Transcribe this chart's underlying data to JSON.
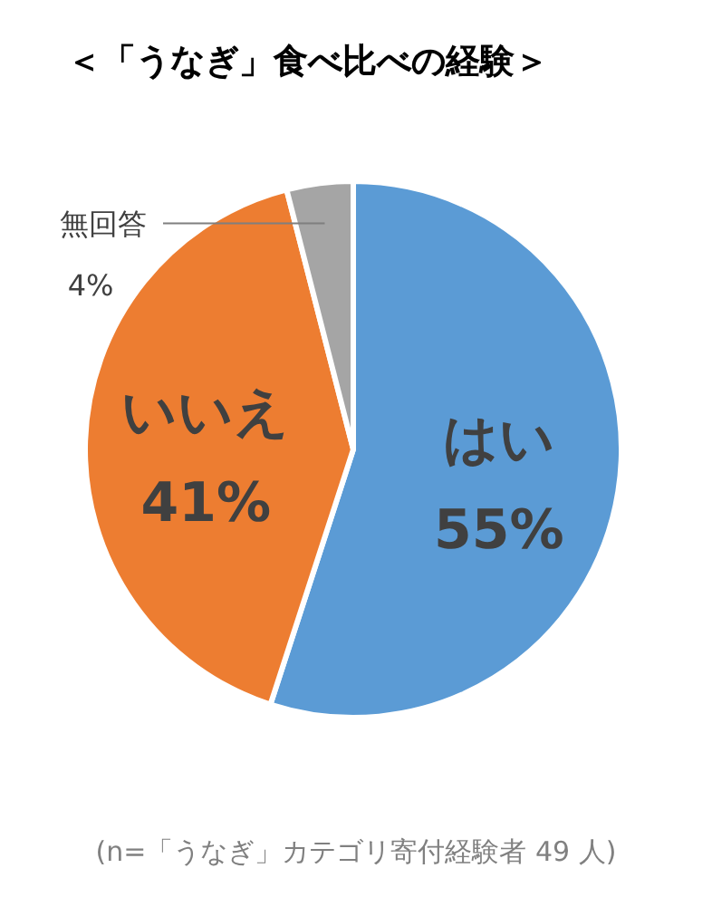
{
  "chart_data": {
    "type": "pie",
    "title": "＜「うなぎ」食べ比べの経験＞",
    "categories": [
      "はい",
      "いいえ",
      "無回答"
    ],
    "values": [
      55,
      41,
      4
    ],
    "value_labels": [
      "55%",
      "41%",
      "4%"
    ],
    "colors": [
      "#5b9bd5",
      "#ed7d31",
      "#a5a5a5"
    ],
    "annotations": [
      "(n=「うなぎ」カテゴリ寄付経験者 49 人)"
    ]
  }
}
